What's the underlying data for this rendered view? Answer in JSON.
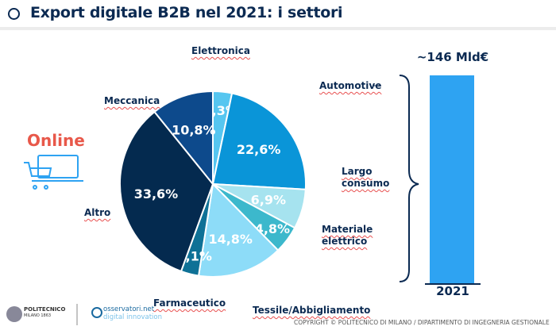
{
  "header": {
    "title": "Export digitale B2B nel 2021: i settori",
    "icon": "search-icon"
  },
  "online_label": "Online",
  "chart_data": [
    {
      "type": "pie",
      "title": "Export digitale B2B nel 2021: i settori",
      "start": "top",
      "direction": "clockwise",
      "slices": [
        {
          "label": "Elettronica",
          "value": 3.3,
          "text": "3,3%",
          "color": "#56c6f0"
        },
        {
          "label": "Automotive",
          "value": 22.6,
          "text": "22,6%",
          "color": "#0a95d8"
        },
        {
          "label": "Largo consumo",
          "value": 6.9,
          "text": "6,9%",
          "color": "#a6e3ef"
        },
        {
          "label": "Materiale elettrico",
          "value": 4.8,
          "text": "4,8%",
          "color": "#3cb8cc"
        },
        {
          "label": "Tessile/Abbigliamento",
          "value": 14.8,
          "text": "14,8%",
          "color": "#8ddcf8"
        },
        {
          "label": "Farmaceutico",
          "value": 3.1,
          "text": "3,1%",
          "color": "#0e7196"
        },
        {
          "label": "Altro",
          "value": 33.6,
          "text": "33,6%",
          "color": "#042a4f"
        },
        {
          "label": "Meccanica",
          "value": 10.8,
          "text": "10,8%",
          "color": "#0d4a8c"
        }
      ]
    },
    {
      "type": "bar",
      "categories": [
        "2021"
      ],
      "values": [
        146
      ],
      "value_label": "~146 Mld€",
      "color": "#2ea3f2"
    }
  ],
  "labels": {
    "elettronica": "Elettronica",
    "automotive": "Automotive",
    "largo1": "Largo",
    "largo2": "consumo",
    "mat1": "Materiale",
    "mat2": "elettrico",
    "tessile": "Tessile/Abbigliamento",
    "farma": "Farmaceutico",
    "altro": "Altro",
    "meccanica": "Meccanica"
  },
  "footer": {
    "copyright": "COPYRIGHT © POLITECNICO DI MILANO / DIPARTIMENTO DI INGEGNERIA GESTIONALE",
    "poli": "POLITECNICO",
    "poli_sub": "MILANO 1863",
    "oss1": "osservatori.net",
    "oss2": "digital innovation"
  }
}
